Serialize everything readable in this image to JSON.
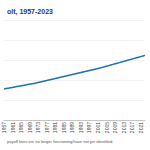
{
  "chart_data": {
    "type": "line",
    "title": "olt, 1957-2023",
    "note": "payoff lines are no longer functioning/have not yet identified.",
    "categories": [
      "1957",
      null,
      null,
      null,
      "1961",
      null,
      null,
      null,
      "1965",
      null,
      null,
      null,
      "1969",
      null,
      null,
      null,
      "1973",
      null,
      null,
      null,
      "1977",
      null,
      null,
      null,
      "1981",
      null,
      null,
      null,
      "1985",
      null,
      null,
      null,
      "1989",
      null,
      null,
      null,
      "1993",
      null,
      null,
      null,
      "1997",
      null,
      null,
      null,
      "2001",
      null,
      null,
      null,
      "2005",
      null,
      null,
      null,
      "2009",
      null,
      null,
      null,
      "2013",
      null,
      null,
      null,
      "2017",
      null,
      null,
      null,
      "2021",
      null,
      null
    ],
    "values": [
      31,
      31.4,
      31.8,
      32.2,
      32.6,
      33,
      33.4,
      33.8,
      34.2,
      34.6,
      35,
      35.4,
      35.8,
      36.2,
      36.6,
      37,
      37.5,
      38,
      38.5,
      39,
      39.5,
      40,
      40.5,
      41,
      41.5,
      42,
      42.5,
      43,
      43.5,
      44,
      44.5,
      45,
      45.5,
      46,
      46.5,
      47,
      47.5,
      48,
      48.5,
      49,
      49.5,
      50,
      50.5,
      51,
      51.5,
      52,
      52.6,
      53.2,
      53.8,
      54.4,
      55,
      55.6,
      56.2,
      56.8,
      57.4,
      58,
      58.6,
      59.2,
      59.8,
      60.4,
      61,
      61.6,
      62.2,
      62.8,
      63.4,
      64,
      64.6
    ],
    "color": "#1f6fb5",
    "ylim": [
      0,
      100
    ],
    "yticks": [
      0,
      20,
      40,
      60,
      80,
      100
    ],
    "grid": true,
    "tick_labels": "x"
  }
}
